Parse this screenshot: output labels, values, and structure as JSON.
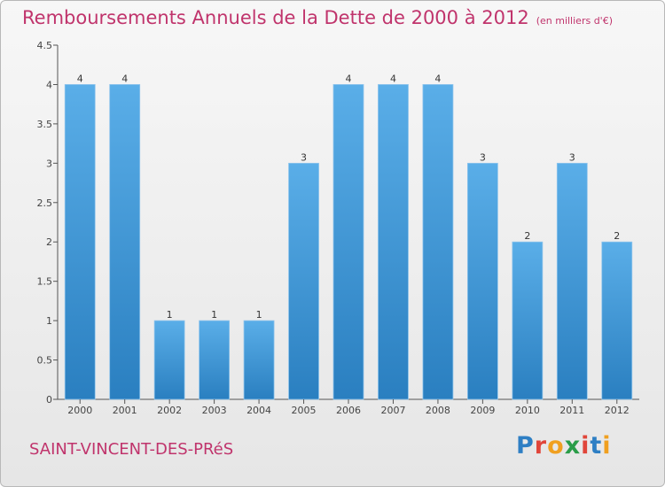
{
  "header": {
    "title": "Remboursements Annuels de la Dette de 2000 à 2012",
    "unit": "(en milliers d'€)"
  },
  "footer": {
    "commune": "SAINT-VINCENT-DES-PRéS",
    "logo": "Proxiti"
  },
  "colors": {
    "title": "#c0346c",
    "bar_top": "#5aaee8",
    "bar_bottom": "#2a7fc0"
  },
  "chart_data": {
    "type": "bar",
    "categories": [
      "2000",
      "2001",
      "2002",
      "2003",
      "2004",
      "2005",
      "2006",
      "2007",
      "2008",
      "2009",
      "2010",
      "2011",
      "2012"
    ],
    "values": [
      4,
      4,
      1,
      1,
      1,
      3,
      4,
      4,
      4,
      3,
      2,
      3,
      2
    ],
    "value_labels": [
      "4",
      "4",
      "1",
      "1",
      "1",
      "3",
      "4",
      "4",
      "4",
      "3",
      "2",
      "3",
      "2"
    ],
    "ylim": [
      0,
      4.5
    ],
    "yticks": [
      "0",
      "0.5",
      "1",
      "1.5",
      "2",
      "2.5",
      "3",
      "3.5",
      "4",
      "4.5"
    ],
    "grid": false,
    "xlabel": "",
    "ylabel": ""
  }
}
